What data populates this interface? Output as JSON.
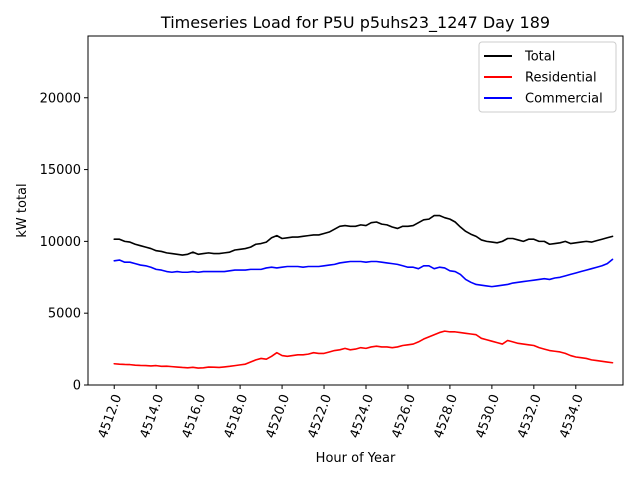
{
  "chart_data": {
    "type": "line",
    "title": "Timeseries Load for P5U p5uhs23_1247  Day 189",
    "xlabel": "Hour of Year",
    "ylabel": "kW total",
    "xlim": [
      4510.75,
      4536.25
    ],
    "ylim": [
      0,
      24300
    ],
    "xticks": [
      4512,
      4514,
      4516,
      4518,
      4520,
      4522,
      4524,
      4526,
      4528,
      4530,
      4532,
      4534
    ],
    "xtick_labels": [
      "4512.0",
      "4514.0",
      "4516.0",
      "4518.0",
      "4520.0",
      "4522.0",
      "4524.0",
      "4526.0",
      "4528.0",
      "4530.0",
      "4532.0",
      "4534.0"
    ],
    "yticks": [
      0,
      5000,
      10000,
      15000,
      20000
    ],
    "ytick_labels": [
      "0",
      "5000",
      "10000",
      "15000",
      "20000"
    ],
    "legend_position": "top-right",
    "x": [
      4512.0,
      4512.25,
      4512.5,
      4512.75,
      4513.0,
      4513.25,
      4513.5,
      4513.75,
      4514.0,
      4514.25,
      4514.5,
      4514.75,
      4515.0,
      4515.25,
      4515.5,
      4515.75,
      4516.0,
      4516.25,
      4516.5,
      4516.75,
      4517.0,
      4517.25,
      4517.5,
      4517.75,
      4518.0,
      4518.25,
      4518.5,
      4518.75,
      4519.0,
      4519.25,
      4519.5,
      4519.75,
      4520.0,
      4520.25,
      4520.5,
      4520.75,
      4521.0,
      4521.25,
      4521.5,
      4521.75,
      4522.0,
      4522.25,
      4522.5,
      4522.75,
      4523.0,
      4523.25,
      4523.5,
      4523.75,
      4524.0,
      4524.25,
      4524.5,
      4524.75,
      4525.0,
      4525.25,
      4525.5,
      4525.75,
      4526.0,
      4526.25,
      4526.5,
      4526.75,
      4527.0,
      4527.25,
      4527.5,
      4527.75,
      4528.0,
      4528.25,
      4528.5,
      4528.75,
      4529.0,
      4529.25,
      4529.5,
      4529.75,
      4530.0,
      4530.25,
      4530.5,
      4530.75,
      4531.0,
      4531.25,
      4531.5,
      4531.75,
      4532.0,
      4532.25,
      4532.5,
      4532.75,
      4533.0,
      4533.25,
      4533.5,
      4533.75,
      4534.0,
      4534.25,
      4534.5,
      4534.75,
      4535.0,
      4535.25,
      4535.5,
      4535.75
    ],
    "series": [
      {
        "name": "Total",
        "color": "#000000",
        "values": [
          10150,
          10150,
          10000,
          9950,
          9800,
          9700,
          9600,
          9500,
          9350,
          9300,
          9200,
          9150,
          9100,
          9050,
          9100,
          9250,
          9100,
          9150,
          9200,
          9150,
          9150,
          9200,
          9250,
          9400,
          9450,
          9500,
          9600,
          9800,
          9850,
          9950,
          10250,
          10400,
          10200,
          10250,
          10300,
          10300,
          10350,
          10400,
          10450,
          10450,
          10550,
          10650,
          10850,
          11050,
          11100,
          11050,
          11050,
          11150,
          11100,
          11300,
          11350,
          11200,
          11150,
          11000,
          10900,
          11050,
          11050,
          11100,
          11300,
          11500,
          11550,
          11800,
          11800,
          11650,
          11550,
          11350,
          11000,
          10700,
          10500,
          10350,
          10100,
          10000,
          9950,
          9900,
          10000,
          10200,
          10200,
          10100,
          10000,
          10150,
          10150,
          10000,
          10000,
          9800,
          9850,
          9900,
          10000,
          9850,
          9900,
          9950,
          10000,
          9950,
          10050,
          10150,
          10250,
          10350
        ]
      },
      {
        "name": "Residential",
        "color": "#ff0000",
        "values": [
          1480,
          1450,
          1430,
          1420,
          1380,
          1360,
          1350,
          1330,
          1350,
          1300,
          1310,
          1280,
          1250,
          1220,
          1200,
          1230,
          1180,
          1200,
          1250,
          1240,
          1220,
          1260,
          1300,
          1350,
          1400,
          1450,
          1600,
          1750,
          1850,
          1800,
          2000,
          2250,
          2050,
          2000,
          2050,
          2100,
          2100,
          2150,
          2250,
          2200,
          2200,
          2300,
          2400,
          2450,
          2550,
          2450,
          2500,
          2600,
          2550,
          2650,
          2700,
          2650,
          2650,
          2600,
          2650,
          2750,
          2800,
          2850,
          3000,
          3200,
          3350,
          3500,
          3650,
          3750,
          3700,
          3700,
          3650,
          3600,
          3550,
          3500,
          3250,
          3150,
          3050,
          2950,
          2850,
          3100,
          3000,
          2900,
          2850,
          2800,
          2750,
          2600,
          2500,
          2400,
          2350,
          2300,
          2200,
          2050,
          1950,
          1900,
          1850,
          1750,
          1700,
          1650,
          1600,
          1550
        ]
      },
      {
        "name": "Commercial",
        "color": "#0000ff",
        "values": [
          8650,
          8700,
          8550,
          8550,
          8450,
          8350,
          8300,
          8200,
          8050,
          8000,
          7900,
          7850,
          7900,
          7850,
          7850,
          7900,
          7850,
          7900,
          7900,
          7900,
          7900,
          7900,
          7950,
          8000,
          8000,
          8000,
          8050,
          8050,
          8050,
          8150,
          8200,
          8150,
          8200,
          8250,
          8250,
          8250,
          8200,
          8250,
          8250,
          8250,
          8300,
          8350,
          8400,
          8500,
          8550,
          8600,
          8600,
          8600,
          8550,
          8600,
          8600,
          8550,
          8500,
          8450,
          8400,
          8300,
          8200,
          8200,
          8100,
          8300,
          8300,
          8100,
          8200,
          8150,
          7950,
          7900,
          7700,
          7350,
          7150,
          7000,
          6950,
          6900,
          6850,
          6900,
          6950,
          7000,
          7100,
          7150,
          7200,
          7250,
          7300,
          7350,
          7400,
          7350,
          7450,
          7500,
          7600,
          7700,
          7800,
          7900,
          8000,
          8100,
          8200,
          8300,
          8450,
          8750
        ]
      }
    ]
  }
}
